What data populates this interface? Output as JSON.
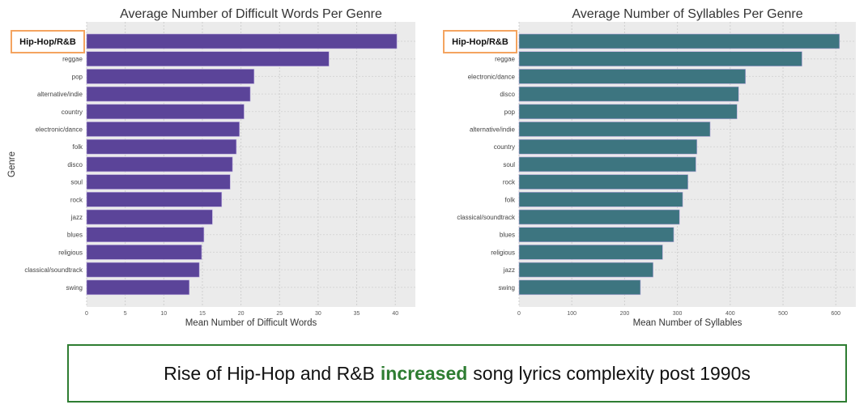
{
  "chart_data": [
    {
      "type": "bar",
      "orientation": "horizontal",
      "title": "Average Number of Difficult Words Per Genre",
      "xlabel": "Mean Number of Difficult Words",
      "ylabel": "Genre",
      "xlim": [
        0,
        42.6
      ],
      "xticks": [
        0,
        5,
        10,
        15,
        20,
        25,
        30,
        35,
        40
      ],
      "grid": true,
      "color": "#5b4499",
      "highlight_label": "Hip-Hop/R&B",
      "categories": [
        "Hip-Hop/R&B",
        "reggae",
        "pop",
        "alternative/indie",
        "country",
        "electronic/dance",
        "folk",
        "disco",
        "soul",
        "rock",
        "jazz",
        "blues",
        "religious",
        "classical/soundtrack",
        "swing"
      ],
      "values": [
        40.2,
        31.4,
        21.7,
        21.2,
        20.4,
        19.8,
        19.4,
        18.9,
        18.6,
        17.5,
        16.3,
        15.2,
        14.9,
        14.6,
        13.3
      ]
    },
    {
      "type": "bar",
      "orientation": "horizontal",
      "title": "Average Number of Syllables Per Genre",
      "xlabel": "Mean Number of Syllables",
      "ylabel": "",
      "xlim": [
        0,
        638
      ],
      "xticks": [
        0,
        100,
        200,
        300,
        400,
        500,
        600
      ],
      "grid": true,
      "color": "#3d7580",
      "highlight_label": "Hip-Hop/R&B",
      "categories": [
        "Hip-Hop/R&B",
        "reggae",
        "electronic/dance",
        "disco",
        "pop",
        "alternative/indie",
        "country",
        "soul",
        "rock",
        "folk",
        "classical/soundtrack",
        "blues",
        "religious",
        "jazz",
        "swing"
      ],
      "values": [
        607,
        536,
        429,
        416,
        413,
        362,
        337,
        335,
        320,
        310,
        304,
        293,
        272,
        254,
        230
      ]
    }
  ],
  "callout": {
    "before": "Rise of Hip-Hop and R&B",
    "highlight": "increased",
    "after": "song lyrics complexity post 1990s",
    "border_color": "#2e7d32",
    "highlight_color": "#2e7d32"
  },
  "highlight_box_color": "#f4a460"
}
